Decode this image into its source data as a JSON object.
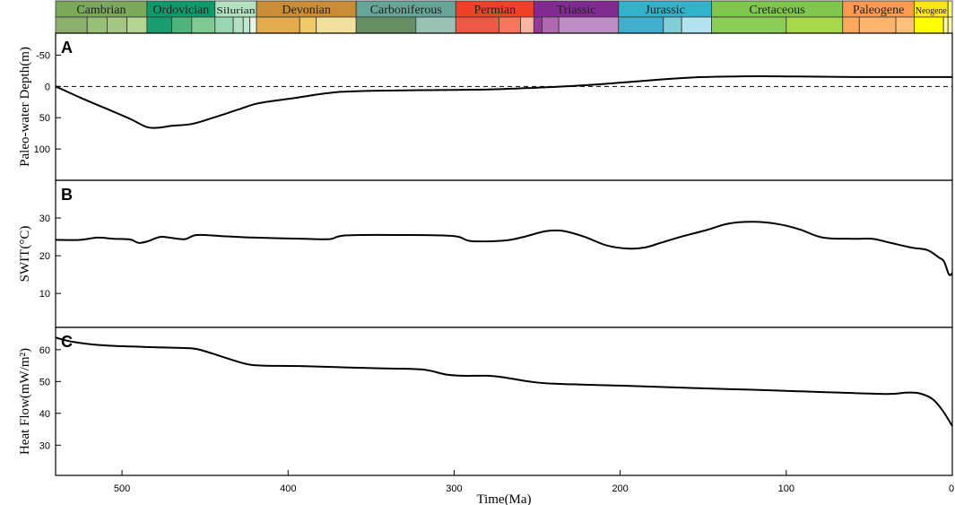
{
  "chart_data": {
    "type": "line",
    "x_axis": {
      "label": "Time(Ma)",
      "range": [
        540,
        0
      ],
      "ticks": [
        500,
        400,
        300,
        200,
        100,
        0
      ]
    },
    "periods": [
      {
        "name": "Cambrian",
        "start": 541,
        "end": 485,
        "color": "#7ca85c",
        "subs": [
          {
            "s": 541,
            "e": 521,
            "c": "#8cb06c"
          },
          {
            "s": 521,
            "e": 509,
            "c": "#99c078"
          },
          {
            "s": 509,
            "e": 497,
            "c": "#a6c583"
          },
          {
            "s": 497,
            "e": 485,
            "c": "#b3d492"
          }
        ]
      },
      {
        "name": "Ordovician",
        "start": 485,
        "end": 444,
        "color": "#0f9a6e",
        "subs": [
          {
            "s": 485,
            "e": 470,
            "c": "#1a9d6f"
          },
          {
            "s": 470,
            "e": 458,
            "c": "#4db47e"
          },
          {
            "s": 458,
            "e": 444,
            "c": "#7fca93"
          }
        ]
      },
      {
        "name": "Silurian",
        "start": 444,
        "end": 419,
        "color": "#b3e1c0",
        "subs": [
          {
            "s": 444,
            "e": 433,
            "c": "#99d7b3"
          },
          {
            "s": 433,
            "e": 427,
            "c": "#b3e1c2"
          },
          {
            "s": 427,
            "e": 423,
            "c": "#bfe6cf"
          },
          {
            "s": 423,
            "e": 419,
            "c": "#e6f5e1"
          }
        ]
      },
      {
        "name": "Devonian",
        "start": 419,
        "end": 359,
        "color": "#cb8c37",
        "subs": [
          {
            "s": 419,
            "e": 393,
            "c": "#e5ac4d"
          },
          {
            "s": 393,
            "e": 383,
            "c": "#f1c868"
          },
          {
            "s": 383,
            "e": 359,
            "c": "#f1e19d"
          }
        ]
      },
      {
        "name": "Carboniferous",
        "start": 359,
        "end": 299,
        "color": "#67a599",
        "subs": [
          {
            "s": 359,
            "e": 323,
            "c": "#678f66"
          },
          {
            "s": 323,
            "e": 299,
            "c": "#99c2b5"
          }
        ]
      },
      {
        "name": "Permian",
        "start": 299,
        "end": 252,
        "color": "#f04028",
        "subs": [
          {
            "s": 299,
            "e": 273,
            "c": "#ef5845"
          },
          {
            "s": 273,
            "e": 260,
            "c": "#fb745c"
          },
          {
            "s": 260,
            "e": 252,
            "c": "#fcb4a2"
          }
        ]
      },
      {
        "name": "Triassic",
        "start": 252,
        "end": 201,
        "color": "#812b92",
        "subs": [
          {
            "s": 252,
            "e": 247,
            "c": "#983999"
          },
          {
            "s": 247,
            "e": 237,
            "c": "#b168b1"
          },
          {
            "s": 237,
            "e": 201,
            "c": "#bd8cc3"
          }
        ]
      },
      {
        "name": "Jurassic",
        "start": 201,
        "end": 145,
        "color": "#34b2c9",
        "subs": [
          {
            "s": 201,
            "e": 174,
            "c": "#42aed0"
          },
          {
            "s": 174,
            "e": 163,
            "c": "#80cfd8"
          },
          {
            "s": 163,
            "e": 145,
            "c": "#b3e3ee"
          }
        ]
      },
      {
        "name": "Cretaceous",
        "start": 145,
        "end": 66,
        "color": "#7fc64e",
        "subs": [
          {
            "s": 145,
            "e": 100,
            "c": "#8ccd57"
          },
          {
            "s": 100,
            "e": 66,
            "c": "#a6d84a"
          }
        ]
      },
      {
        "name": "Paleogene",
        "start": 66,
        "end": 23,
        "color": "#fd9a52",
        "subs": [
          {
            "s": 66,
            "e": 56,
            "c": "#fda75f"
          },
          {
            "s": 56,
            "e": 34,
            "c": "#fdb46c"
          },
          {
            "s": 34,
            "e": 23,
            "c": "#fec07a"
          }
        ]
      },
      {
        "name": "Neogene",
        "start": 23,
        "end": 2.6,
        "color": "#ffe619",
        "subs": [
          {
            "s": 23,
            "e": 5.3,
            "c": "#ffff00"
          },
          {
            "s": 5.3,
            "e": 2.6,
            "c": "#ffff99"
          }
        ]
      },
      {
        "name": "",
        "start": 2.6,
        "end": 0,
        "color": "#f9f97f",
        "subs": [
          {
            "s": 2.6,
            "e": 0,
            "c": "#fff2ae"
          }
        ]
      }
    ],
    "panels": [
      {
        "letter": "A",
        "ylabel": "Paleo-water Depth(m)",
        "yrange": [
          -85,
          150
        ],
        "ticks": [
          -50,
          0,
          50,
          100
        ],
        "inverted": true,
        "zero_dashed": true,
        "values": [
          [
            541,
            0
          ],
          [
            525,
            18
          ],
          [
            510,
            35
          ],
          [
            495,
            52
          ],
          [
            485,
            65
          ],
          [
            478,
            66
          ],
          [
            470,
            63
          ],
          [
            458,
            60
          ],
          [
            445,
            50
          ],
          [
            430,
            37
          ],
          [
            418,
            27
          ],
          [
            400,
            20
          ],
          [
            385,
            14
          ],
          [
            370,
            9
          ],
          [
            350,
            7
          ],
          [
            320,
            6
          ],
          [
            280,
            5
          ],
          [
            250,
            2
          ],
          [
            220,
            -2
          ],
          [
            190,
            -8
          ],
          [
            170,
            -12
          ],
          [
            150,
            -15
          ],
          [
            130,
            -16
          ],
          [
            100,
            -16
          ],
          [
            60,
            -15
          ],
          [
            30,
            -15
          ],
          [
            0,
            -15
          ]
        ]
      },
      {
        "letter": "B",
        "ylabel": "SWIT(°C)",
        "yrange": [
          1,
          40
        ],
        "ticks": [
          10,
          20,
          30
        ],
        "values": [
          [
            541,
            24.2
          ],
          [
            525,
            24.2
          ],
          [
            515,
            24.8
          ],
          [
            505,
            24.5
          ],
          [
            495,
            24.3
          ],
          [
            490,
            23.4
          ],
          [
            484,
            23.9
          ],
          [
            477,
            25.0
          ],
          [
            470,
            24.7
          ],
          [
            462,
            24.4
          ],
          [
            455,
            25.5
          ],
          [
            440,
            25.2
          ],
          [
            420,
            24.8
          ],
          [
            390,
            24.5
          ],
          [
            375,
            24.4
          ],
          [
            365,
            25.4
          ],
          [
            330,
            25.5
          ],
          [
            300,
            25.2
          ],
          [
            290,
            23.9
          ],
          [
            270,
            24.0
          ],
          [
            258,
            25.0
          ],
          [
            245,
            26.5
          ],
          [
            235,
            26.6
          ],
          [
            222,
            25.1
          ],
          [
            208,
            22.7
          ],
          [
            195,
            21.9
          ],
          [
            185,
            22.2
          ],
          [
            175,
            23.5
          ],
          [
            162,
            25.2
          ],
          [
            148,
            26.8
          ],
          [
            135,
            28.5
          ],
          [
            120,
            29.0
          ],
          [
            105,
            28.4
          ],
          [
            92,
            27.0
          ],
          [
            78,
            24.8
          ],
          [
            60,
            24.5
          ],
          [
            48,
            24.5
          ],
          [
            38,
            23.5
          ],
          [
            25,
            22.2
          ],
          [
            15,
            21.5
          ],
          [
            8,
            19.5
          ],
          [
            5,
            18.5
          ],
          [
            2,
            15.0
          ],
          [
            0,
            15.4
          ]
        ]
      },
      {
        "letter": "C",
        "ylabel": "Heat Flow(mW/m²)",
        "yrange": [
          20.5,
          67
        ],
        "ticks": [
          30,
          40,
          50,
          60
        ],
        "values": [
          [
            541,
            63.8
          ],
          [
            530,
            62.5
          ],
          [
            515,
            61.5
          ],
          [
            495,
            61.0
          ],
          [
            475,
            60.7
          ],
          [
            458,
            60.4
          ],
          [
            450,
            59.5
          ],
          [
            438,
            57.5
          ],
          [
            425,
            55.5
          ],
          [
            415,
            55.0
          ],
          [
            390,
            54.8
          ],
          [
            350,
            54.2
          ],
          [
            320,
            53.8
          ],
          [
            305,
            52.2
          ],
          [
            295,
            51.8
          ],
          [
            280,
            51.8
          ],
          [
            270,
            51.3
          ],
          [
            255,
            50.0
          ],
          [
            240,
            49.3
          ],
          [
            200,
            48.7
          ],
          [
            160,
            48.0
          ],
          [
            120,
            47.4
          ],
          [
            80,
            46.7
          ],
          [
            40,
            46.1
          ],
          [
            28,
            46.5
          ],
          [
            20,
            46.3
          ],
          [
            12,
            44.5
          ],
          [
            6,
            41.0
          ],
          [
            0,
            36.0
          ]
        ]
      }
    ]
  }
}
